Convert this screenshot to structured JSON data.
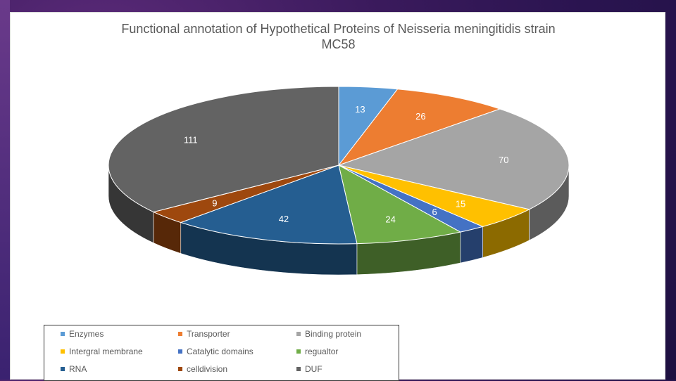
{
  "chart_data": {
    "type": "pie",
    "title": "Functional annotation of Hypothetical Proteins of Neisseria meningitidis strain MC58",
    "title_line1": "Functional annotation of Hypothetical Proteins of Neisseria meningitidis strain",
    "title_line2": "MC58",
    "slices": [
      {
        "label": "Enzymes",
        "value": 13,
        "color": "#5b9bd5"
      },
      {
        "label": "Transporter",
        "value": 26,
        "color": "#ed7d31"
      },
      {
        "label": "Binding protein",
        "value": 70,
        "color": "#a5a5a5"
      },
      {
        "label": "Intergral membrane",
        "value": 15,
        "color": "#ffc000"
      },
      {
        "label": "Catalytic domains",
        "value": 6,
        "color": "#4472c4"
      },
      {
        "label": "regualtor",
        "value": 24,
        "color": "#70ad47"
      },
      {
        "label": "RNA",
        "value": 42,
        "color": "#255e91"
      },
      {
        "label": "celldivision",
        "value": 9,
        "color": "#9e480e"
      },
      {
        "label": "DUF",
        "value": 111,
        "color": "#636363"
      }
    ],
    "legend_position": "bottom",
    "style": "3d-exploded-pie"
  }
}
